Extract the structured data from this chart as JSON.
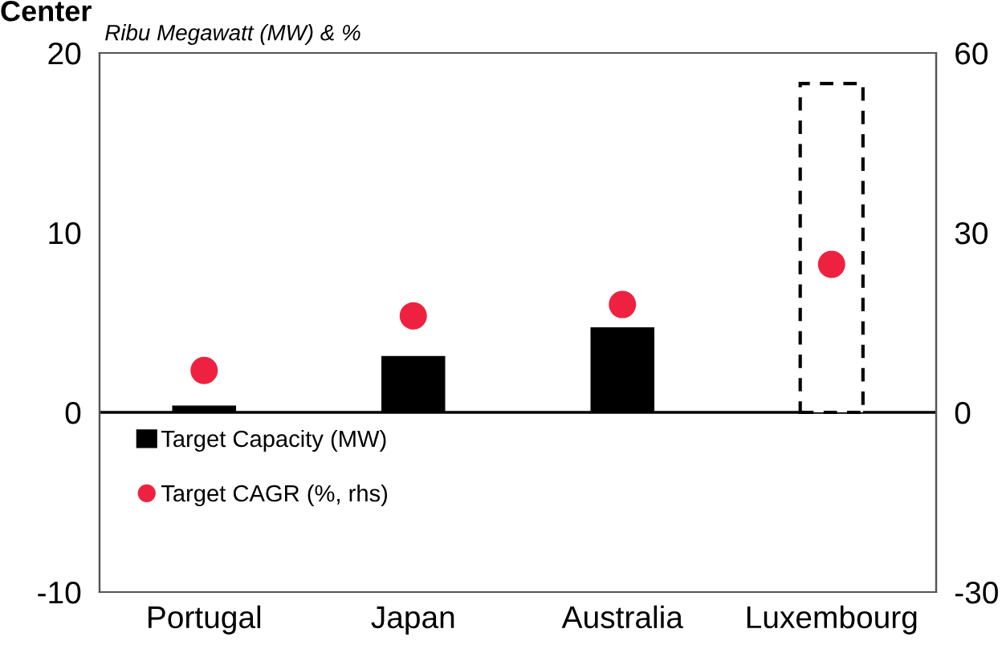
{
  "chart_data": {
    "type": "bar",
    "title": "Center",
    "ylabel": "Ribu Megawatt (MW) & %",
    "categories": [
      "Portugal",
      "Japan",
      "Australia",
      "Luxembourg"
    ],
    "series": [
      {
        "name": "Target Capacity (MW)",
        "color": "#000000",
        "values": [
          0.35,
          3.1,
          4.7,
          null
        ]
      },
      {
        "color": "#ffffff",
        "line_style": "dashed",
        "values": [
          null,
          null,
          null,
          18.3
        ]
      },
      {
        "name": "Target CAGR (%, rhs)",
        "type": "scatter",
        "axis": "y2",
        "color": "#ee2240",
        "marker": "circle",
        "values": [
          7.0,
          16.1,
          18.0,
          24.7
        ]
      }
    ],
    "ylim": [
      -10,
      20
    ],
    "yticks": [
      -10,
      0,
      10,
      20
    ],
    "y2lim": [
      -30,
      60
    ],
    "y2ticks": [
      -30,
      0,
      30,
      60
    ],
    "ref_lines": [
      {
        "axis": "y",
        "value": 0,
        "color": "#000000"
      }
    ],
    "grid": false,
    "legend": "bottom left"
  }
}
